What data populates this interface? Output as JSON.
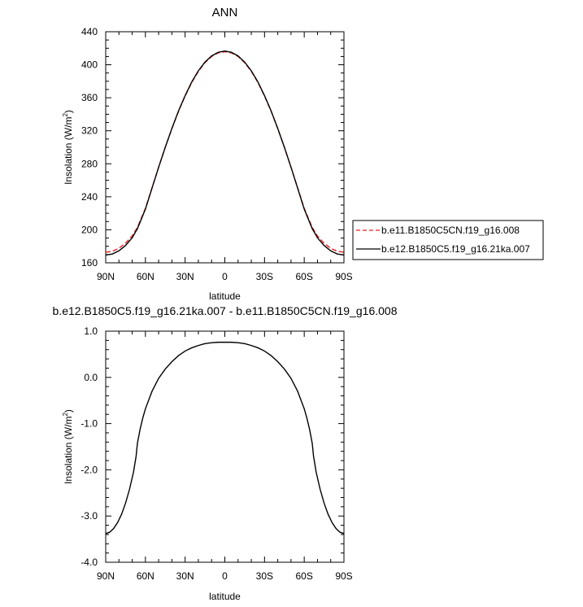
{
  "colors": {
    "control": "#e8201f",
    "experiment": "#000000",
    "axis": "#000000",
    "background": "#ffffff"
  },
  "chart_data": [
    {
      "type": "line",
      "title": "ANN",
      "xlabel": "latitude",
      "ylabel": "Insolation (W/m",
      "ylabel_superscript": "2",
      "ylabel_suffix": ")",
      "xlim": [
        90,
        -90
      ],
      "ylim": [
        160,
        440
      ],
      "xticks": [
        90,
        60,
        30,
        0,
        -30,
        -60,
        -90
      ],
      "xtick_labels": [
        "90N",
        "60N",
        "30N",
        "0",
        "30S",
        "60S",
        "90S"
      ],
      "yticks": [
        160,
        200,
        240,
        280,
        320,
        360,
        400,
        440
      ],
      "ytick_labels": [
        "160",
        "200",
        "240",
        "280",
        "320",
        "360",
        "400",
        "440"
      ],
      "grid": false,
      "legend_position": "right, outside plot",
      "x": [
        90,
        85,
        80,
        75,
        70,
        66,
        60,
        55,
        50,
        45,
        40,
        35,
        30,
        25,
        20,
        15,
        10,
        5,
        0,
        -5,
        -10,
        -15,
        -20,
        -25,
        -30,
        -35,
        -40,
        -45,
        -50,
        -55,
        -60,
        -66,
        -70,
        -75,
        -80,
        -85,
        -90
      ],
      "series": [
        {
          "name": "b.e11.B1850C5CN.f19_g16.008",
          "color": "#e8201f",
          "dash": "dashed",
          "values": [
            172.8,
            174.0,
            177.6,
            183.8,
            192.5,
            203.0,
            226.0,
            251.0,
            276.0,
            300.0,
            322.5,
            343.5,
            362.0,
            378.5,
            392.0,
            402.5,
            410.0,
            414.3,
            415.8,
            414.3,
            410.0,
            402.5,
            392.0,
            378.5,
            362.0,
            343.5,
            322.5,
            300.0,
            276.0,
            251.0,
            226.0,
            203.0,
            192.5,
            183.8,
            177.6,
            174.0,
            172.8
          ]
        },
        {
          "name": "b.e12.B1850C5.f19_g16.21ka.007",
          "color": "#000000",
          "dash": "solid",
          "values": [
            169.4,
            170.7,
            174.5,
            181.0,
            190.3,
            201.5,
            225.0,
            250.5,
            275.8,
            300.0,
            322.8,
            344.0,
            362.6,
            379.2,
            392.7,
            403.2,
            410.7,
            415.1,
            416.6,
            415.1,
            410.7,
            403.2,
            392.7,
            379.2,
            362.6,
            344.0,
            322.8,
            300.0,
            275.8,
            250.5,
            225.0,
            201.5,
            190.3,
            181.0,
            174.5,
            170.7,
            169.4
          ]
        }
      ]
    },
    {
      "type": "line",
      "title": "b.e12.B1850C5.f19_g16.21ka.007 - b.e11.B1850C5CN.f19_g16.008",
      "xlabel": "latitude",
      "ylabel": "Insolation (W/m",
      "ylabel_superscript": "2",
      "ylabel_suffix": ")",
      "xlim": [
        90,
        -90
      ],
      "ylim": [
        -4.0,
        1.0
      ],
      "xticks": [
        90,
        60,
        30,
        0,
        -30,
        -60,
        -90
      ],
      "xtick_labels": [
        "90N",
        "60N",
        "30N",
        "0",
        "30S",
        "60S",
        "90S"
      ],
      "yticks": [
        1.0,
        0.0,
        -1.0,
        -2.0,
        -3.0,
        -4.0
      ],
      "ytick_labels": [
        "1.0",
        "0.0",
        "-1.0",
        "-2.0",
        "-3.0",
        "-4.0"
      ],
      "grid": false,
      "x": [
        90,
        87,
        84,
        81,
        78,
        75,
        72,
        69,
        67,
        66.5,
        66,
        64,
        62,
        60,
        55,
        50,
        45,
        40,
        35,
        30,
        25,
        20,
        15,
        10,
        5,
        0,
        -5,
        -10,
        -15,
        -20,
        -25,
        -30,
        -35,
        -40,
        -45,
        -50,
        -55,
        -60,
        -62,
        -64,
        -66,
        -66.5,
        -67,
        -69,
        -72,
        -75,
        -78,
        -81,
        -84,
        -87,
        -90
      ],
      "series": [
        {
          "color": "#000000",
          "dash": "solid",
          "values": [
            -3.38,
            -3.35,
            -3.27,
            -3.14,
            -2.96,
            -2.72,
            -2.42,
            -2.05,
            -1.7,
            -1.55,
            -1.42,
            -1.12,
            -0.88,
            -0.68,
            -0.3,
            -0.02,
            0.18,
            0.34,
            0.47,
            0.57,
            0.64,
            0.69,
            0.73,
            0.75,
            0.76,
            0.76,
            0.76,
            0.75,
            0.73,
            0.69,
            0.64,
            0.57,
            0.47,
            0.34,
            0.18,
            -0.02,
            -0.3,
            -0.68,
            -0.88,
            -1.12,
            -1.42,
            -1.55,
            -1.7,
            -2.05,
            -2.42,
            -2.72,
            -2.96,
            -3.14,
            -3.27,
            -3.35,
            -3.38
          ]
        }
      ]
    }
  ]
}
